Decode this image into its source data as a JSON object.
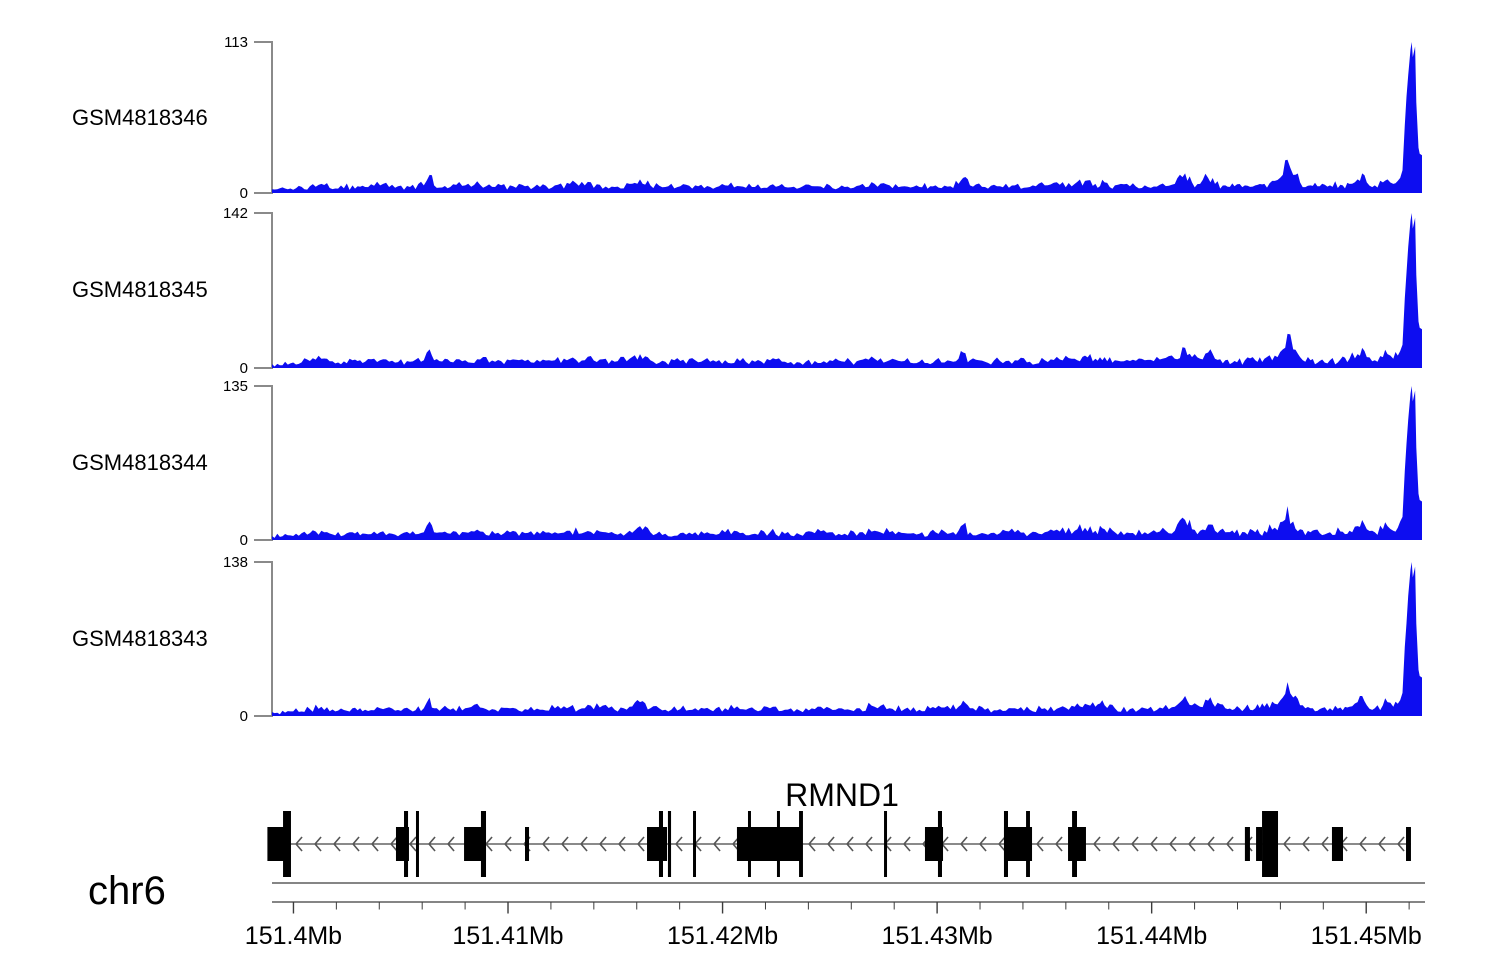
{
  "chart_data": {
    "type": "area",
    "kind": "genome-browser-coverage-tracks",
    "title": "RMND1",
    "chromosome": "chr6",
    "region_mb": [
      151.399,
      151.4526
    ],
    "x_axis": {
      "unit": "Mb",
      "major_ticks_mb": [
        151.4,
        151.41,
        151.42,
        151.43,
        151.44,
        151.45
      ],
      "major_tick_labels": [
        "151.4Mb",
        "151.41Mb",
        "151.42Mb",
        "151.43Mb",
        "151.44Mb",
        "151.45Mb"
      ],
      "minor_tick_step_mb": 0.002
    },
    "y_zero_label": "0",
    "tracks": [
      {
        "name": "GSM4818346",
        "ymax": 113,
        "seed": 11
      },
      {
        "name": "GSM4818345",
        "ymax": 142,
        "seed": 27
      },
      {
        "name": "GSM4818344",
        "ymax": 135,
        "seed": 43
      },
      {
        "name": "GSM4818343",
        "ymax": 138,
        "seed": 59
      }
    ],
    "colors": {
      "signal": "#0d0df0",
      "y_axis": "#8a8a8a",
      "genome_axis": "#3c3c3c",
      "gene": "#000000",
      "intron_arrows": "#555555"
    },
    "signal_profile": [
      [
        0.0,
        0.025
      ],
      [
        0.016,
        0.03
      ],
      [
        0.033,
        0.045
      ],
      [
        0.043,
        0.06
      ],
      [
        0.055,
        0.03
      ],
      [
        0.07,
        0.05
      ],
      [
        0.081,
        0.04
      ],
      [
        0.094,
        0.05
      ],
      [
        0.107,
        0.035
      ],
      [
        0.12,
        0.04
      ],
      [
        0.132,
        0.05
      ],
      [
        0.137,
        0.12
      ],
      [
        0.141,
        0.05
      ],
      [
        0.155,
        0.04
      ],
      [
        0.168,
        0.05
      ],
      [
        0.181,
        0.055
      ],
      [
        0.194,
        0.04
      ],
      [
        0.207,
        0.05
      ],
      [
        0.22,
        0.045
      ],
      [
        0.233,
        0.04
      ],
      [
        0.246,
        0.05
      ],
      [
        0.259,
        0.06
      ],
      [
        0.272,
        0.05
      ],
      [
        0.285,
        0.055
      ],
      [
        0.298,
        0.04
      ],
      [
        0.311,
        0.06
      ],
      [
        0.32,
        0.09
      ],
      [
        0.329,
        0.05
      ],
      [
        0.342,
        0.04
      ],
      [
        0.355,
        0.045
      ],
      [
        0.368,
        0.05
      ],
      [
        0.381,
        0.04
      ],
      [
        0.394,
        0.05
      ],
      [
        0.407,
        0.045
      ],
      [
        0.42,
        0.04
      ],
      [
        0.433,
        0.05
      ],
      [
        0.446,
        0.04
      ],
      [
        0.459,
        0.035
      ],
      [
        0.472,
        0.045
      ],
      [
        0.485,
        0.05
      ],
      [
        0.498,
        0.04
      ],
      [
        0.511,
        0.05
      ],
      [
        0.524,
        0.06
      ],
      [
        0.537,
        0.05
      ],
      [
        0.55,
        0.045
      ],
      [
        0.563,
        0.04
      ],
      [
        0.577,
        0.05
      ],
      [
        0.59,
        0.045
      ],
      [
        0.597,
        0.06
      ],
      [
        0.601,
        0.1
      ],
      [
        0.607,
        0.05
      ],
      [
        0.62,
        0.04
      ],
      [
        0.633,
        0.045
      ],
      [
        0.646,
        0.05
      ],
      [
        0.659,
        0.04
      ],
      [
        0.672,
        0.05
      ],
      [
        0.685,
        0.055
      ],
      [
        0.698,
        0.06
      ],
      [
        0.707,
        0.08
      ],
      [
        0.716,
        0.06
      ],
      [
        0.724,
        0.07
      ],
      [
        0.733,
        0.05
      ],
      [
        0.746,
        0.045
      ],
      [
        0.759,
        0.05
      ],
      [
        0.772,
        0.055
      ],
      [
        0.785,
        0.06
      ],
      [
        0.794,
        0.13
      ],
      [
        0.8,
        0.07
      ],
      [
        0.807,
        0.06
      ],
      [
        0.814,
        0.1
      ],
      [
        0.82,
        0.06
      ],
      [
        0.829,
        0.05
      ],
      [
        0.837,
        0.045
      ],
      [
        0.846,
        0.05
      ],
      [
        0.855,
        0.05
      ],
      [
        0.863,
        0.06
      ],
      [
        0.872,
        0.08
      ],
      [
        0.879,
        0.12
      ],
      [
        0.883,
        0.22
      ],
      [
        0.888,
        0.12
      ],
      [
        0.894,
        0.07
      ],
      [
        0.903,
        0.05
      ],
      [
        0.911,
        0.045
      ],
      [
        0.92,
        0.05
      ],
      [
        0.929,
        0.055
      ],
      [
        0.937,
        0.06
      ],
      [
        0.944,
        0.09
      ],
      [
        0.948,
        0.13
      ],
      [
        0.952,
        0.07
      ],
      [
        0.959,
        0.05
      ],
      [
        0.966,
        0.07
      ],
      [
        0.97,
        0.09
      ],
      [
        0.975,
        0.06
      ],
      [
        0.979,
        0.08
      ],
      [
        0.983,
        0.15
      ],
      [
        0.985,
        0.45
      ],
      [
        0.988,
        0.78
      ],
      [
        0.99,
        0.95
      ],
      [
        0.991,
        1.0
      ],
      [
        0.992,
        0.9
      ],
      [
        0.994,
        0.97
      ],
      [
        0.995,
        0.6
      ],
      [
        0.997,
        0.3
      ],
      [
        0.998,
        0.26
      ],
      [
        1.0,
        0.25
      ]
    ],
    "gene": {
      "name": "RMND1",
      "strand": "-",
      "span_frac": [
        -0.0017,
        0.9904
      ],
      "exons_medium": [
        [
          -0.004,
          0.014
        ],
        [
          0.1078,
          0.1191
        ],
        [
          0.167,
          0.1861
        ],
        [
          0.22,
          0.2235
        ],
        [
          0.3261,
          0.3435
        ],
        [
          0.4043,
          0.4609
        ],
        [
          0.5678,
          0.5835
        ],
        [
          0.6365,
          0.6609
        ],
        [
          0.6922,
          0.7078
        ],
        [
          0.846,
          0.8504
        ],
        [
          0.8557,
          0.8609
        ],
        [
          0.9217,
          0.9313
        ],
        [
          0.9861,
          0.9904
        ]
      ],
      "exons_tall": [
        [
          0.0096,
          0.0165
        ],
        [
          0.1148,
          0.1183
        ],
        [
          0.1252,
          0.1278
        ],
        [
          0.1817,
          0.1861
        ],
        [
          0.3365,
          0.34
        ],
        [
          0.3443,
          0.347
        ],
        [
          0.3661,
          0.3687
        ],
        [
          0.4139,
          0.4165
        ],
        [
          0.4391,
          0.4417
        ],
        [
          0.4583,
          0.4617
        ],
        [
          0.5322,
          0.5348
        ],
        [
          0.5791,
          0.5826
        ],
        [
          0.6365,
          0.64
        ],
        [
          0.6557,
          0.6591
        ],
        [
          0.6957,
          0.7
        ],
        [
          0.8609,
          0.8748
        ]
      ]
    }
  }
}
